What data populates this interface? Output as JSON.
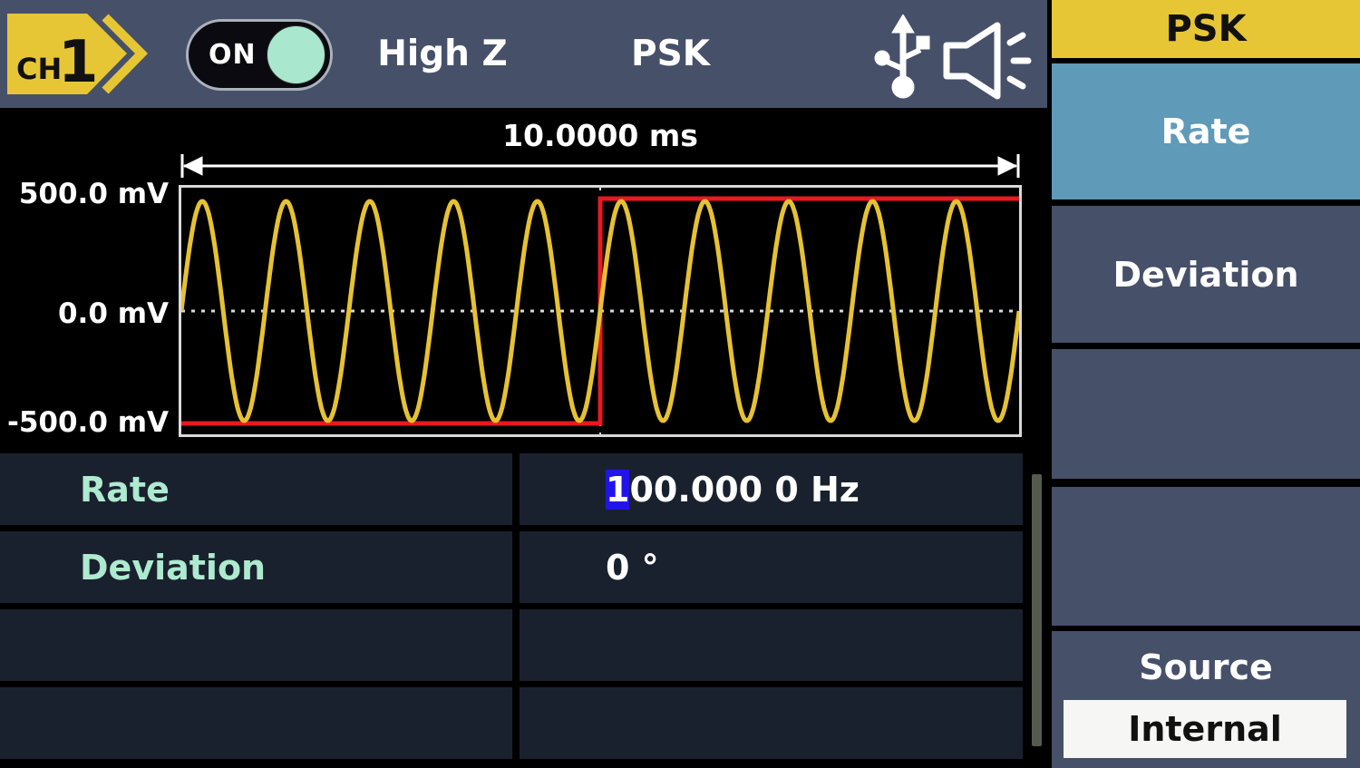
{
  "header": {
    "channel_badge": "CH1",
    "output_toggle": {
      "label": "ON",
      "state": "on"
    },
    "impedance": "High Z",
    "mode": "PSK",
    "status_icons": [
      {
        "name": "usb-icon"
      },
      {
        "name": "beeper-icon"
      }
    ]
  },
  "waveform_panel": {
    "period_label": "10.0000 ms",
    "y_axis_labels": [
      "500.0 mV",
      "0.0 mV",
      "-500.0 mV"
    ]
  },
  "chart_data": {
    "type": "line",
    "title": "",
    "x_range_label": "10.0000 ms",
    "y_tick_labels": [
      "500.0 mV",
      "0.0 mV",
      "-500.0 mV"
    ],
    "ylim": [
      -500,
      500
    ],
    "grid": false,
    "series": [
      {
        "name": "carrier-sine",
        "shape": "sine",
        "color": "#e6c233",
        "cycles": 10,
        "amplitude": 500,
        "phase_deg": 0
      },
      {
        "name": "psk-keying-step",
        "shape": "step",
        "color": "#e8191f",
        "points": [
          [
            0,
            -500
          ],
          [
            0.5,
            -500
          ],
          [
            0.5,
            500
          ],
          [
            1,
            500
          ]
        ]
      }
    ],
    "markers": {
      "transition_x_fraction": 0.5,
      "zero_dotted_line": true
    }
  },
  "parameters": {
    "rows": [
      {
        "label": "Rate",
        "value": "100.000 0 Hz",
        "cursor_char": "1",
        "value_rest": "00.000 0 Hz"
      },
      {
        "label": "Deviation",
        "value": "0 °",
        "cursor_char": "",
        "value_rest": "0 °"
      },
      {
        "label": "",
        "value": "",
        "cursor_char": "",
        "value_rest": ""
      },
      {
        "label": "",
        "value": "",
        "cursor_char": "",
        "value_rest": ""
      }
    ]
  },
  "sidebar": {
    "title": "PSK",
    "buttons": [
      {
        "label": "Rate",
        "active": true
      },
      {
        "label": "Deviation",
        "active": false
      },
      {
        "label": "",
        "active": false
      },
      {
        "label": "",
        "active": false
      }
    ],
    "source_button": {
      "label": "Source",
      "value": "Internal"
    }
  },
  "colors": {
    "topbar_bg": "#475069",
    "accent_yellow": "#e7c635",
    "active_blue": "#5f9ab9",
    "label_mint": "#aeeacf",
    "cell_bg": "#1a212e",
    "cursor_blue": "#2214e8",
    "trace_yellow": "#e6c233",
    "trace_red": "#e8191f",
    "toggle_knob_mint": "#a9e8cf"
  }
}
